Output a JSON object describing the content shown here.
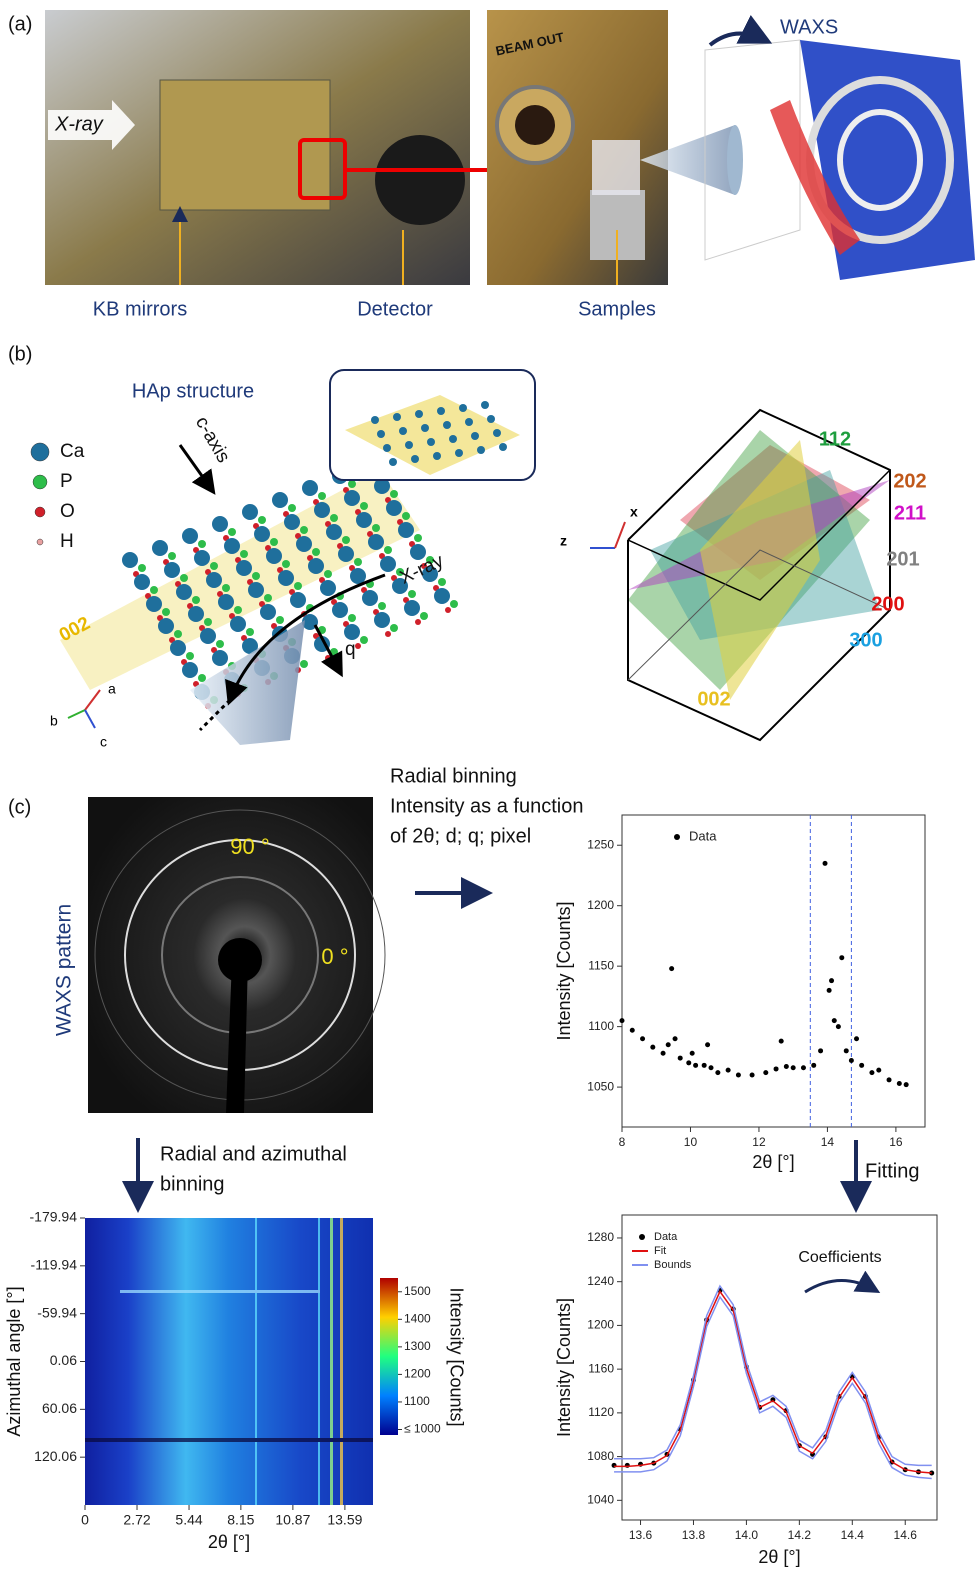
{
  "panel_a": {
    "label": "(a)",
    "xray": "X-ray",
    "kb_mirrors": "KB mirrors",
    "detector": "Detector",
    "samples": "Samples",
    "beam_out": "BEAM OUT",
    "waxs": "WAXS"
  },
  "panel_b": {
    "label": "(b)",
    "title": "HAp structure",
    "legend": [
      {
        "name": "Ca",
        "color": "#1f6f9c"
      },
      {
        "name": "P",
        "color": "#2ebd4a"
      },
      {
        "name": "O",
        "color": "#d0202a"
      },
      {
        "name": "H",
        "color": "#e8a0a0"
      }
    ],
    "c_axis": "c-axis",
    "xray": "X-ray",
    "q": "q",
    "plane": "002",
    "axes": [
      "a",
      "b",
      "c"
    ],
    "cube_planes": [
      {
        "label": "112",
        "color": "#1e9e3e"
      },
      {
        "label": "202",
        "color": "#c0581a"
      },
      {
        "label": "211",
        "color": "#d010c8"
      },
      {
        "label": "201",
        "color": "#808080"
      },
      {
        "label": "200",
        "color": "#e01010"
      },
      {
        "label": "300",
        "color": "#1aa0e0"
      },
      {
        "label": "002",
        "color": "#e8c020"
      }
    ],
    "cube_axes": [
      "z",
      "x"
    ]
  },
  "panel_c": {
    "label": "(c)",
    "radial_binning": [
      "Radial binning",
      "Intensity as a function",
      "of 2θ; d; q; pixel"
    ],
    "pattern_label": "WAXS pattern",
    "angle_90": "90 °",
    "angle_0": "0 °",
    "radial_azimuthal": [
      "Radial and azimuthal",
      "binning"
    ],
    "fitting": "Fitting",
    "coefficients": "Coefficients"
  },
  "chart_data": [
    {
      "type": "heatmap",
      "x_label": "2θ [°]",
      "y_label": "Azimuthal angle [°]",
      "xlim": [
        0,
        15.06
      ],
      "ylim": [
        -179.94,
        180.06
      ],
      "xticks": [
        0,
        2.72,
        5.44,
        8.15,
        10.87,
        13.59
      ],
      "yticks": [
        -179.94,
        -119.94,
        -59.94,
        0.06,
        60.06,
        120.06
      ],
      "colorbar": {
        "label": "Intensity [Counts]",
        "lim": [
          980,
          1550
        ],
        "ticks": [
          {
            "value": 1000,
            "label": "≤ 1000"
          },
          1100,
          1200,
          1300,
          1400,
          1500
        ]
      }
    },
    {
      "type": "scatter",
      "x_label": "2θ [°]",
      "y_label": "Intensity [Counts]",
      "xlim": [
        8,
        16.85
      ],
      "ylim": [
        1017,
        1275
      ],
      "xticks": [
        8,
        10,
        12,
        14,
        16
      ],
      "yticks": [
        1050,
        1100,
        1150,
        1200,
        1250
      ],
      "bounds_x": [
        13.5,
        14.7
      ],
      "x": [
        8.0,
        8.3,
        8.6,
        8.9,
        9.2,
        9.35,
        9.45,
        9.55,
        9.7,
        9.95,
        10.05,
        10.15,
        10.4,
        10.5,
        10.6,
        10.8,
        11.1,
        11.4,
        11.8,
        12.2,
        12.5,
        12.65,
        12.8,
        13.0,
        13.3,
        13.6,
        13.8,
        13.93,
        14.05,
        14.12,
        14.2,
        14.32,
        14.42,
        14.55,
        14.7,
        14.85,
        15.0,
        15.3,
        15.5,
        15.8,
        16.1,
        16.3
      ],
      "series": [
        {
          "name": "Data",
          "color": "#000000",
          "values": [
            1105,
            1097,
            1090,
            1083,
            1078,
            1085,
            1148,
            1090,
            1074,
            1070,
            1078,
            1068,
            1068,
            1085,
            1066,
            1062,
            1064,
            1060,
            1060,
            1062,
            1065,
            1088,
            1067,
            1066,
            1066,
            1068,
            1080,
            1235,
            1130,
            1138,
            1105,
            1100,
            1157,
            1080,
            1072,
            1090,
            1068,
            1062,
            1064,
            1056,
            1053,
            1052
          ]
        }
      ]
    },
    {
      "type": "fit",
      "x_label": "2θ [°]",
      "y_label": "Intensity [Counts]",
      "xlim": [
        13.53,
        14.72
      ],
      "ylim": [
        1022,
        1301
      ],
      "xticks": [
        13.6,
        13.8,
        {
          "value": 14,
          "label": "14.0"
        },
        14.2,
        14.4,
        14.6
      ],
      "yticks": [
        1040,
        1080,
        1120,
        1160,
        1200,
        1240,
        1280
      ],
      "x": [
        13.5,
        13.55,
        13.6,
        13.65,
        13.7,
        13.75,
        13.8,
        13.85,
        13.9,
        13.95,
        14.0,
        14.05,
        14.1,
        14.15,
        14.2,
        14.25,
        14.3,
        14.35,
        14.4,
        14.45,
        14.5,
        14.55,
        14.6,
        14.65,
        14.7
      ],
      "series": [
        {
          "name": "Data",
          "color": "#000000",
          "values": [
            1072,
            1072,
            1073,
            1074,
            1082,
            1105,
            1150,
            1205,
            1232,
            1215,
            1162,
            1125,
            1132,
            1122,
            1090,
            1082,
            1098,
            1135,
            1153,
            1135,
            1098,
            1075,
            1068,
            1066,
            1065
          ]
        },
        {
          "name": "Fit",
          "color": "#e01010",
          "values": [
            1071,
            1071,
            1072,
            1074,
            1081,
            1104,
            1149,
            1204,
            1231,
            1214,
            1161,
            1125,
            1131,
            1121,
            1090,
            1083,
            1099,
            1134,
            1152,
            1134,
            1097,
            1075,
            1068,
            1066,
            1065
          ]
        },
        {
          "name": "Bounds",
          "color": "#8090f0",
          "values": [
            1078,
            1078,
            1078,
            1079,
            1086,
            1109,
            1154,
            1209,
            1236,
            1219,
            1166,
            1130,
            1136,
            1126,
            1095,
            1088,
            1104,
            1139,
            1157,
            1139,
            1102,
            1080,
            1073,
            1072,
            1072
          ],
          "lower": [
            1066,
            1066,
            1066,
            1068,
            1076,
            1099,
            1144,
            1199,
            1226,
            1209,
            1156,
            1120,
            1126,
            1116,
            1085,
            1078,
            1094,
            1129,
            1147,
            1129,
            1092,
            1070,
            1063,
            1061,
            1060
          ]
        }
      ]
    }
  ]
}
